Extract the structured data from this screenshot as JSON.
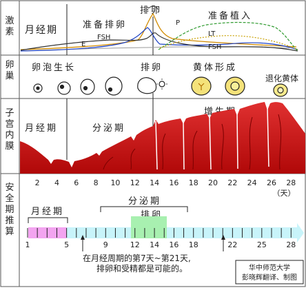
{
  "rows": {
    "hormones": "激素",
    "ovary": "卵巢",
    "endometrium": "子宫内膜",
    "safe_period": "安全期推算"
  },
  "hormone_panel": {
    "menstrual": "月经期",
    "preparing_ovulation": "准备排卵",
    "ovulation": "排卵",
    "preparing_implant": "准备植入",
    "curves": [
      {
        "label": "E",
        "color": "#1a3fc4"
      },
      {
        "label": "FSH",
        "color": "#333333"
      },
      {
        "label": "P",
        "color": "#2e9a2e"
      },
      {
        "label": "LT",
        "color": "#c8a000"
      }
    ],
    "lh_color": "#d08a00",
    "fsh_late_label": "FSH"
  },
  "ovary_panel": {
    "follicle_growth": "卵泡生长",
    "ovulation": "排卵",
    "corpus_luteum_forming": "黄体形成",
    "regressing_luteum": "退化黄体"
  },
  "endometrium_panel": {
    "menstrual": "月经期",
    "secretory": "分泌期",
    "proliferative": "增生期",
    "tissue_color": "#c81414"
  },
  "day_axis": {
    "ticks": [
      "2",
      "4",
      "6",
      "8",
      "10",
      "12",
      "14",
      "16",
      "18",
      "20",
      "22",
      "24",
      "26",
      "28"
    ],
    "unit": "（天）"
  },
  "safe_panel": {
    "menstrual": "月经期",
    "secretory": "分泌期",
    "ovulation": "排卵",
    "day_labels": [
      "1",
      "5",
      "9",
      "12",
      "14",
      "16",
      "18",
      "22",
      "25",
      "28"
    ],
    "note_line1": "在月经周期的第7天~第21天,",
    "note_line2": "排卵和受精都是可能的。",
    "credit_line1": "华中师范大学",
    "credit_line2": "彭晓辉翻译、制图",
    "menstrual_color": "#f3a4f0",
    "ovulation_color": "#a8f0b0",
    "bar_color": "#c8f4fa"
  }
}
